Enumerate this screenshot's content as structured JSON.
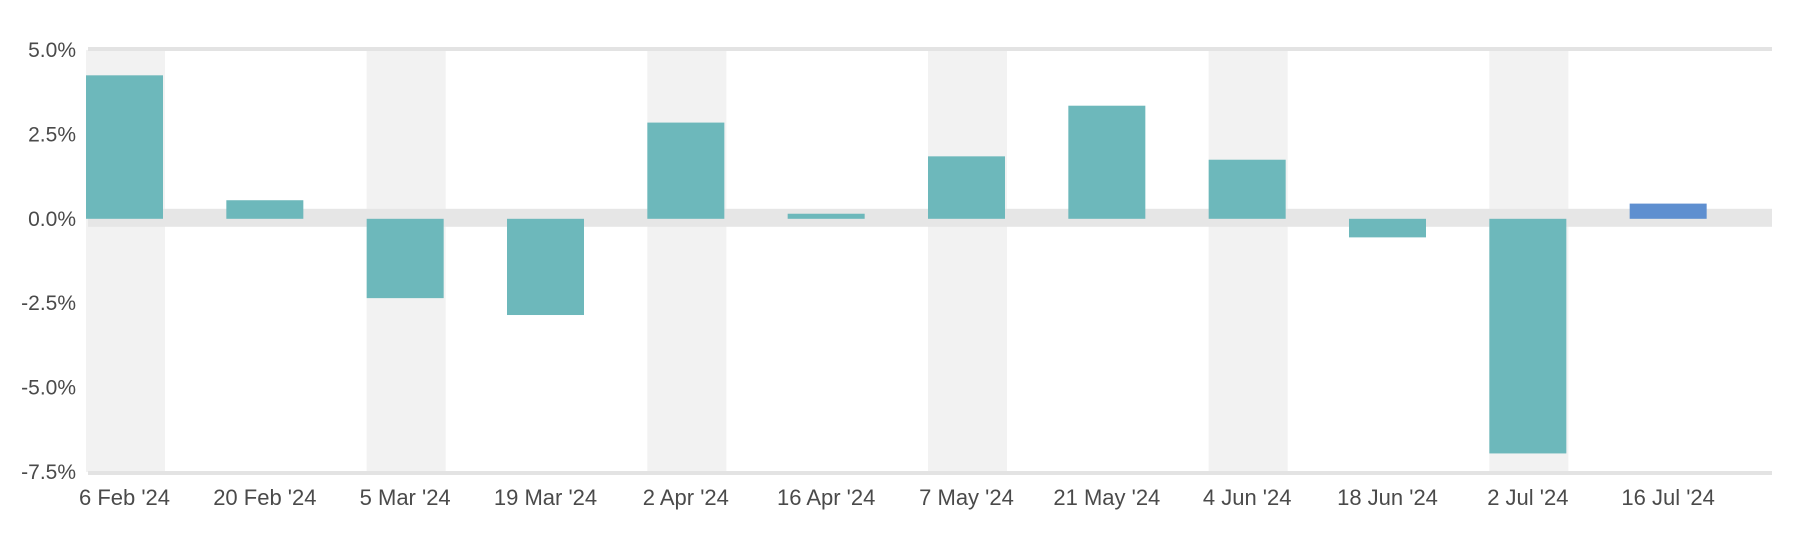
{
  "chart_data": {
    "type": "bar",
    "title": "",
    "xlabel": "",
    "ylabel": "",
    "categories": [
      "6 Feb '24",
      "20 Feb '24",
      "5 Mar '24",
      "19 Mar '24",
      "2 Apr '24",
      "16 Apr '24",
      "7 May '24",
      "21 May '24",
      "4 Jun '24",
      "18 Jun '24",
      "2 Jul '24",
      "16 Jul '24"
    ],
    "values": [
      4.25,
      0.55,
      -2.35,
      -2.85,
      2.85,
      0.15,
      1.85,
      3.35,
      1.75,
      -0.55,
      -6.95,
      0.45
    ],
    "highlight_index": 11,
    "ylim": [
      -7.5,
      5.0
    ],
    "yticks": [
      5.0,
      2.5,
      0.0,
      -2.5,
      -5.0,
      -7.5
    ],
    "ytick_labels": [
      "5.0%",
      "2.5%",
      "0.0%",
      "-2.5%",
      "-5.0%",
      "-7.5%"
    ],
    "grid": false,
    "legend": "none",
    "colors": {
      "bar": "#6db8bb",
      "highlight_bar": "#5e8fd0",
      "band": "#f2f2f2",
      "axis_line": "#e3e3e3"
    }
  }
}
